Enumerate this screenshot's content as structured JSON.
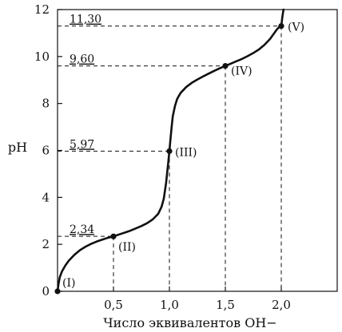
{
  "chart_data": {
    "type": "line",
    "xlabel": "Число эквивалентов OH−",
    "ylabel": "pH",
    "xlim": [
      0,
      2.5
    ],
    "ylim": [
      0,
      12
    ],
    "x_ticks": [
      0.5,
      1.0,
      1.5,
      2.0
    ],
    "x_tick_labels": [
      "0,5",
      "1,0",
      "1,5",
      "2,0"
    ],
    "y_ticks": [
      0,
      2,
      4,
      6,
      8,
      10,
      12
    ],
    "y_tick_labels": [
      "0",
      "2",
      "4",
      "6",
      "8",
      "10",
      "12"
    ],
    "grid": false,
    "series": [
      {
        "x": [
          0.0,
          0.01,
          0.02,
          0.04,
          0.07,
          0.1,
          0.15,
          0.2,
          0.25,
          0.3,
          0.35,
          0.4,
          0.45,
          0.5,
          0.55,
          0.6,
          0.65,
          0.7,
          0.75,
          0.8,
          0.85,
          0.9,
          0.93,
          0.95,
          0.97,
          0.98,
          0.99,
          1.0,
          1.01,
          1.02,
          1.03,
          1.05,
          1.07,
          1.1,
          1.15,
          1.2,
          1.25,
          1.3,
          1.35,
          1.4,
          1.45,
          1.5,
          1.55,
          1.6,
          1.65,
          1.7,
          1.75,
          1.8,
          1.85,
          1.9,
          1.93,
          1.96,
          1.98,
          2.0,
          2.01,
          2.02
        ],
        "y": [
          0.0,
          0.35,
          0.6,
          0.85,
          1.1,
          1.3,
          1.55,
          1.75,
          1.9,
          2.02,
          2.12,
          2.2,
          2.28,
          2.34,
          2.42,
          2.5,
          2.58,
          2.68,
          2.78,
          2.9,
          3.06,
          3.3,
          3.6,
          3.95,
          4.6,
          5.05,
          5.5,
          5.97,
          6.5,
          7.0,
          7.45,
          7.9,
          8.2,
          8.45,
          8.7,
          8.88,
          9.02,
          9.15,
          9.27,
          9.39,
          9.5,
          9.6,
          9.7,
          9.8,
          9.9,
          10.02,
          10.15,
          10.3,
          10.5,
          10.75,
          10.95,
          11.15,
          11.25,
          11.3,
          11.7,
          12.0
        ]
      }
    ],
    "points": [
      {
        "label": "(I)",
        "x": 0.0,
        "y": 0.0
      },
      {
        "label": "(II)",
        "x": 0.5,
        "y": 2.34
      },
      {
        "label": "(III)",
        "x": 1.0,
        "y": 5.97
      },
      {
        "label": "(IV)",
        "x": 1.5,
        "y": 9.6
      },
      {
        "label": "(V)",
        "x": 2.0,
        "y": 11.3
      }
    ],
    "annotations": [
      {
        "text": "2,34",
        "y": 2.34,
        "x_end": 0.5
      },
      {
        "text": "5,97",
        "y": 5.97,
        "x_end": 1.0
      },
      {
        "text": "9,60",
        "y": 9.6,
        "x_end": 1.5
      },
      {
        "text": "11,30",
        "y": 11.3,
        "x_end": 2.0
      }
    ]
  }
}
